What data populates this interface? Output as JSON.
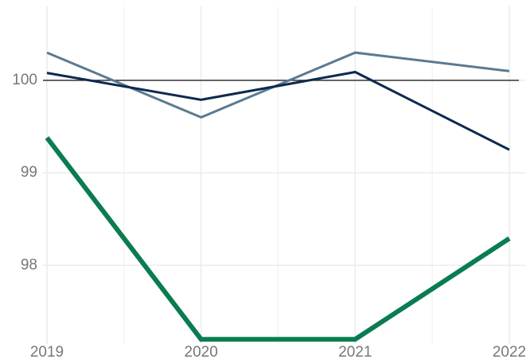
{
  "chart_data": {
    "type": "line",
    "x": [
      2019,
      2020,
      2021,
      2022
    ],
    "series": [
      {
        "color": "#5b7a90",
        "width": 3,
        "values": [
          100.3,
          99.6,
          100.3,
          100.1
        ]
      },
      {
        "color": "#0d2a4f",
        "width": 3,
        "values": [
          100.08,
          99.79,
          100.09,
          99.25
        ]
      },
      {
        "color": "#0a7d50",
        "width": 6,
        "values": [
          99.38,
          97.2,
          97.2,
          98.29
        ]
      }
    ],
    "xlim": [
      2019,
      2022
    ],
    "xticks": [
      2019,
      2020,
      2021,
      2022
    ],
    "xminor": [
      2019.5,
      2020.5,
      2021.5
    ],
    "ylim": [
      97.15,
      100.8
    ],
    "yticks": [
      98,
      99,
      100
    ],
    "hline": 100,
    "grid": true
  }
}
